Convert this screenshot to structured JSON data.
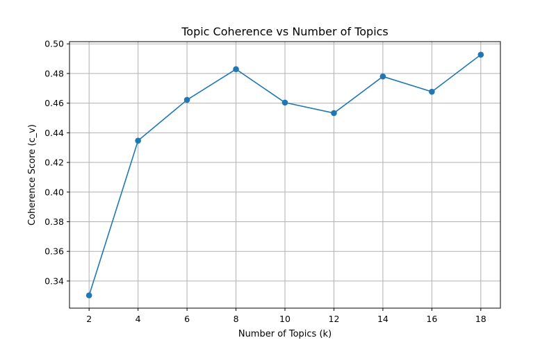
{
  "chart_data": {
    "type": "line",
    "title": "Topic Coherence vs Number of Topics",
    "xlabel": "Number of Topics (k)",
    "ylabel": "Coherence Score (c_v)",
    "x": [
      2,
      4,
      6,
      8,
      10,
      12,
      14,
      16,
      18
    ],
    "x_ticks": [
      2,
      4,
      6,
      8,
      10,
      12,
      14,
      16,
      18
    ],
    "y_ticks": [
      0.34,
      0.36,
      0.38,
      0.4,
      0.42,
      0.44,
      0.46,
      0.48,
      0.5
    ],
    "y_tick_labels": [
      "0.34",
      "0.36",
      "0.38",
      "0.40",
      "0.42",
      "0.44",
      "0.46",
      "0.48",
      "0.50"
    ],
    "xlim": [
      1.2,
      18.8
    ],
    "ylim": [
      0.3217,
      0.5015
    ],
    "grid": true,
    "marker": "circle",
    "series": [
      {
        "values": [
          0.3303,
          0.4347,
          0.4622,
          0.4829,
          0.4604,
          0.4533,
          0.478,
          0.4677,
          0.4927
        ],
        "color": "#1f77b4"
      }
    ]
  }
}
